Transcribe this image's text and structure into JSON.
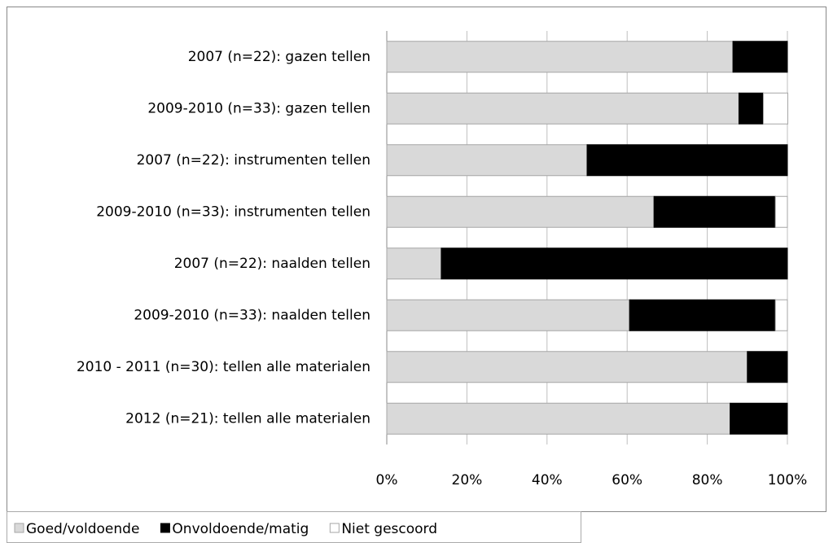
{
  "chart_data": {
    "type": "stacked_bar_horizontal",
    "categories": [
      "2007 (n=22): gazen tellen",
      "2009-2010 (n=33): gazen tellen",
      "2007 (n=22): instrumenten tellen",
      "2009-2010 (n=33): instrumenten tellen",
      "2007 (n=22): naalden tellen",
      "2009-2010 (n=33): naalden tellen",
      "2010 - 2011 (n=30): tellen alle materialen",
      "2012 (n=21): tellen alle materialen"
    ],
    "series": [
      {
        "name": "Goed/voldoende",
        "color": "#d9d9d9",
        "values": [
          86.4,
          87.9,
          50,
          66.7,
          13.6,
          60.6,
          90,
          85.7
        ]
      },
      {
        "name": "Onvoldoende/matig",
        "color": "#000000",
        "values": [
          13.6,
          6.1,
          50,
          30.3,
          86.4,
          36.4,
          10,
          14.3
        ]
      },
      {
        "name": "Niet gescoord",
        "color": "#ffffff",
        "values": [
          0,
          6.1,
          0,
          3.0,
          0,
          3.0,
          0,
          0
        ]
      }
    ],
    "xlim": [
      0,
      100
    ],
    "xticks": [
      {
        "value": 0,
        "label": "0%"
      },
      {
        "value": 20,
        "label": "20%"
      },
      {
        "value": 40,
        "label": "40%"
      },
      {
        "value": 60,
        "label": "60%"
      },
      {
        "value": 80,
        "label": "80%"
      },
      {
        "value": 100,
        "label": "100%"
      }
    ],
    "grid": true,
    "legend": "bottom"
  }
}
